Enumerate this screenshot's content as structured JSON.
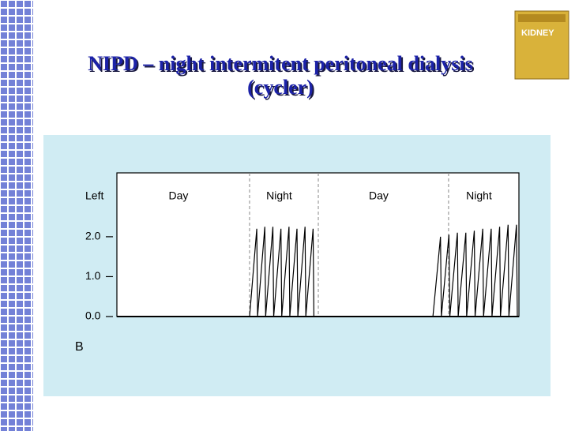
{
  "title": "NIPD – night intermitent peritoneal dialysis (cycler)",
  "cover_title": "KIDNEY",
  "chart_data": {
    "type": "line",
    "y_label": "Left",
    "panel_label": "B",
    "annotations": [
      "Day",
      "Night",
      "Day",
      "Night"
    ],
    "dividers": [
      33.0,
      50.1,
      82.5
    ],
    "color": "#000000",
    "xlim": [
      0,
      100
    ],
    "ylim": [
      0,
      3.6
    ],
    "yticks": [
      {
        "value": 0,
        "label": "0.0"
      },
      {
        "value": 1,
        "label": "1.0"
      },
      {
        "value": 2,
        "label": "2.0"
      }
    ],
    "x": [
      0,
      33.0,
      34.8,
      35.0,
      36.8,
      37.0,
      38.8,
      39.0,
      40.8,
      41.0,
      42.8,
      43.0,
      44.8,
      45.0,
      46.8,
      47.0,
      48.8,
      49.0,
      78.6,
      80.5,
      80.7,
      82.6,
      82.8,
      84.7,
      84.9,
      86.8,
      87.0,
      88.9,
      89.1,
      91.0,
      91.2,
      93.1,
      93.3,
      95.2,
      95.4,
      97.3,
      97.5,
      99.4,
      99.6
    ],
    "values": [
      0,
      0,
      2.2,
      0,
      2.25,
      0,
      2.25,
      0,
      2.2,
      0,
      2.25,
      0,
      2.2,
      0,
      2.25,
      0,
      2.2,
      0,
      0,
      2.0,
      0,
      2.05,
      0,
      2.1,
      0,
      2.1,
      0,
      2.15,
      0,
      2.2,
      0,
      2.2,
      0,
      2.25,
      0,
      2.3,
      0,
      2.3,
      0
    ]
  }
}
